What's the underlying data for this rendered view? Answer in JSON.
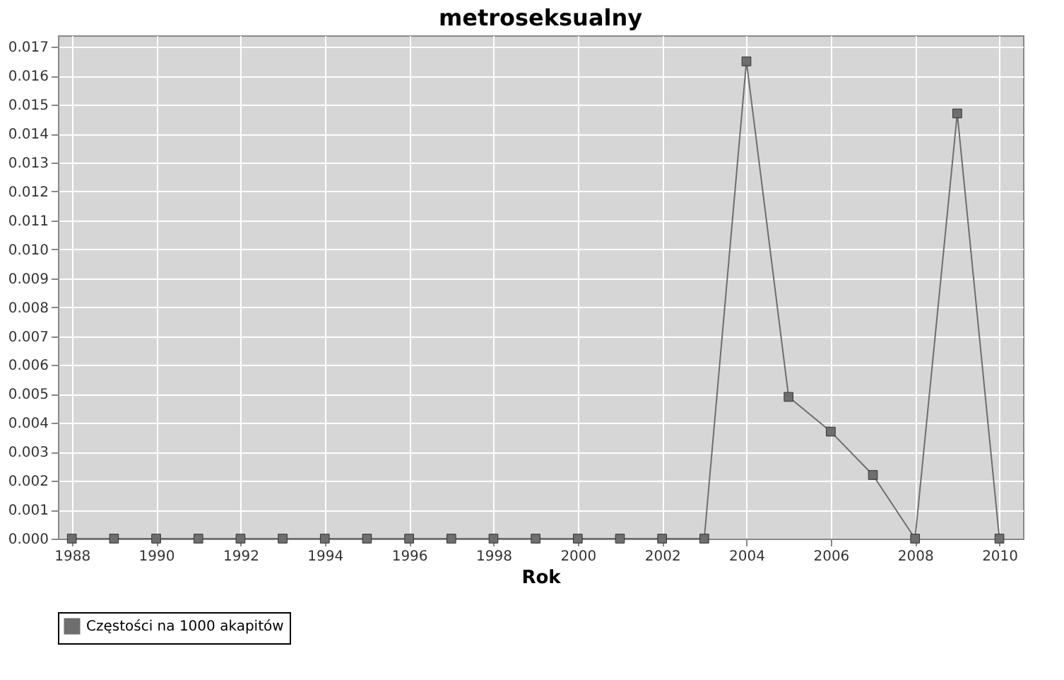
{
  "chart_data": {
    "type": "line",
    "title": "metroseksualny",
    "xlabel": "Rok",
    "x": [
      1988,
      1989,
      1990,
      1991,
      1992,
      1993,
      1994,
      1995,
      1996,
      1997,
      1998,
      1999,
      2000,
      2001,
      2002,
      2003,
      2004,
      2005,
      2006,
      2007,
      2008,
      2009,
      2010
    ],
    "series": [
      {
        "name": "Częstości na 1000 akapitów",
        "color": "#6e6e6e",
        "values": [
          0,
          0,
          0,
          0,
          0,
          0,
          0,
          0,
          0,
          0,
          0,
          0,
          0,
          0,
          0,
          0,
          0.0165,
          0.0049,
          0.0037,
          0.0022,
          0,
          0.0147,
          0
        ]
      }
    ],
    "xlim": [
      1987.67,
      2010.56
    ],
    "xticks": [
      1988,
      1990,
      1992,
      1994,
      1996,
      1998,
      2000,
      2002,
      2004,
      2006,
      2008,
      2010
    ],
    "ylim": [
      0,
      0.0174
    ],
    "yticks": [
      {
        "value": 0,
        "label": "0.000"
      },
      {
        "value": 0.001,
        "label": "0.001"
      },
      {
        "value": 0.002,
        "label": "0.002"
      },
      {
        "value": 0.003,
        "label": "0.003"
      },
      {
        "value": 0.004,
        "label": "0.004"
      },
      {
        "value": 0.005,
        "label": "0.005"
      },
      {
        "value": 0.006,
        "label": "0.006"
      },
      {
        "value": 0.007,
        "label": "0.007"
      },
      {
        "value": 0.008,
        "label": "0.008"
      },
      {
        "value": 0.009,
        "label": "0.009"
      },
      {
        "value": 0.01,
        "label": "0.010"
      },
      {
        "value": 0.011,
        "label": "0.011"
      },
      {
        "value": 0.012,
        "label": "0.012"
      },
      {
        "value": 0.013,
        "label": "0.013"
      },
      {
        "value": 0.014,
        "label": "0.014"
      },
      {
        "value": 0.015,
        "label": "0.015"
      },
      {
        "value": 0.016,
        "label": "0.016"
      },
      {
        "value": 0.017,
        "label": "0.017"
      }
    ],
    "grid": true,
    "legend": "bottom",
    "marker": "square",
    "line_style": "solid"
  }
}
